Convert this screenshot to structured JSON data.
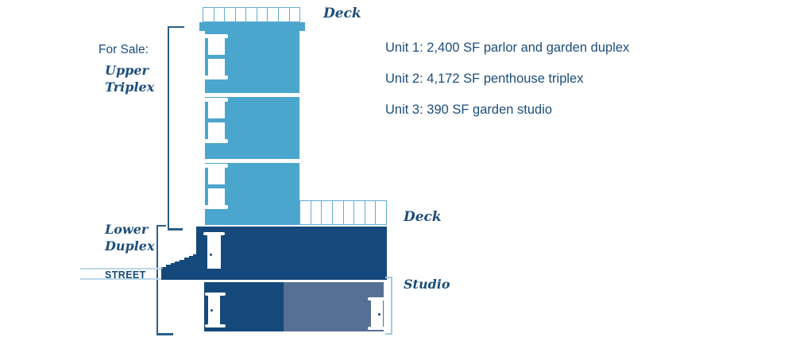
{
  "labels": {
    "for_sale": "For Sale:",
    "upper_triplex_line1": "Upper",
    "upper_triplex_line2": "Triplex",
    "lower_duplex_line1": "Lower",
    "lower_duplex_line2": "Duplex",
    "street": "STREET",
    "roof_deck": "Deck",
    "mid_deck": "Deck",
    "studio": "Studio"
  },
  "units": [
    "Unit 1: 2,400 SF parlor and garden duplex",
    "Unit 2: 4,172 SF penthouse triplex",
    "Unit 3: 390 SF garden studio"
  ],
  "building": {
    "roof_deck_cells": 9,
    "mid_deck_cells": 8,
    "stoop_steps": 8,
    "upper_floors": 3
  },
  "colors": {
    "light_blue": "#4BA6CE",
    "navy": "#15497B",
    "studio_gray": "#566F94",
    "text_navy": "#1C4E7B",
    "bracket_navy": "#2B5E86",
    "light_line": "#BCD8E9",
    "rail_blue": "#63ADD2",
    "studio_bracket": "#A3CBE0"
  }
}
